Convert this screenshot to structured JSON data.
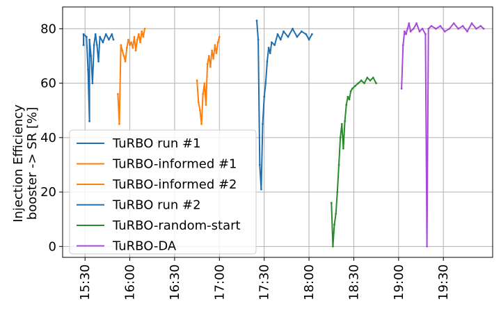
{
  "chart_data": {
    "type": "line",
    "title": "",
    "xlabel": "",
    "ylabel": [
      "Injection Efficiency",
      "booster -> SR [%]"
    ],
    "x_ticks": [
      "15:30",
      "16:00",
      "16:30",
      "17:00",
      "17:30",
      "18:00",
      "18:30",
      "19:00",
      "19:30"
    ],
    "x_tick_values": [
      "15:30",
      "16:00",
      "16:30",
      "17:00",
      "17:30",
      "18:00",
      "18:30",
      "19:00",
      "19:30"
    ],
    "xlim": [
      "15:15",
      "20:03"
    ],
    "y_ticks": [
      "0",
      "20",
      "40",
      "60",
      "80"
    ],
    "y_tick_values": [
      0,
      20,
      40,
      60,
      80
    ],
    "ylim": [
      -4,
      88
    ],
    "grid": true,
    "legend_position": "lower-left",
    "series": [
      {
        "name": "TuRBO run #1",
        "color": "#1f6fb0",
        "points": [
          [
            "15:29",
            74
          ],
          [
            "15:29",
            78
          ],
          [
            "15:31",
            77
          ],
          [
            "15:32",
            65
          ],
          [
            "15:33",
            46
          ],
          [
            "15:33",
            76
          ],
          [
            "15:34",
            70
          ],
          [
            "15:35",
            60
          ],
          [
            "15:36",
            74
          ],
          [
            "15:37",
            78
          ],
          [
            "15:38",
            74
          ],
          [
            "15:39",
            68
          ],
          [
            "15:40",
            77
          ],
          [
            "15:42",
            75
          ],
          [
            "15:44",
            78
          ],
          [
            "15:46",
            76
          ],
          [
            "15:48",
            78
          ],
          [
            "15:49",
            76
          ]
        ]
      },
      {
        "name": "TuRBO-informed #1",
        "color": "#ff7f0e",
        "points": [
          [
            "15:52",
            56
          ],
          [
            "15:53",
            45
          ],
          [
            "15:54",
            74
          ],
          [
            "15:55",
            72
          ],
          [
            "15:56",
            70
          ],
          [
            "15:57",
            68
          ],
          [
            "15:58",
            73
          ],
          [
            "15:59",
            76
          ],
          [
            "16:00",
            74
          ],
          [
            "16:01",
            75
          ],
          [
            "16:02",
            73
          ],
          [
            "16:03",
            77
          ],
          [
            "16:04",
            72
          ],
          [
            "16:05",
            76
          ],
          [
            "16:06",
            78
          ],
          [
            "16:07",
            75
          ],
          [
            "16:08",
            79
          ],
          [
            "16:09",
            77
          ],
          [
            "16:10",
            80
          ]
        ]
      },
      {
        "name": "TuRBO-informed #2",
        "color": "#ff7f0e",
        "points": [
          [
            "16:45",
            61
          ],
          [
            "16:46",
            53
          ],
          [
            "16:47",
            50
          ],
          [
            "16:48",
            45
          ],
          [
            "16:49",
            56
          ],
          [
            "16:50",
            60
          ],
          [
            "16:51",
            52
          ],
          [
            "16:52",
            67
          ],
          [
            "16:53",
            70
          ],
          [
            "16:54",
            66
          ],
          [
            "16:55",
            72
          ],
          [
            "16:56",
            69
          ],
          [
            "16:57",
            74
          ],
          [
            "16:58",
            71
          ],
          [
            "16:59",
            75
          ],
          [
            "17:00",
            77
          ]
        ]
      },
      {
        "name": "TuRBO run #2",
        "color": "#1f6fb0",
        "points": [
          [
            "17:25",
            83
          ],
          [
            "17:26",
            76
          ],
          [
            "17:27",
            30
          ],
          [
            "17:28",
            21
          ],
          [
            "17:29",
            45
          ],
          [
            "17:30",
            55
          ],
          [
            "17:31",
            60
          ],
          [
            "17:32",
            68
          ],
          [
            "17:33",
            73
          ],
          [
            "17:34",
            71
          ],
          [
            "17:35",
            75
          ],
          [
            "17:37",
            74
          ],
          [
            "17:39",
            78
          ],
          [
            "17:41",
            76
          ],
          [
            "17:43",
            79
          ],
          [
            "17:46",
            77
          ],
          [
            "17:49",
            80
          ],
          [
            "17:52",
            77
          ],
          [
            "17:55",
            79
          ],
          [
            "17:58",
            78
          ],
          [
            "18:00",
            76
          ],
          [
            "18:02",
            78
          ]
        ]
      },
      {
        "name": "TuRBO-random-start",
        "color": "#2a8a2a",
        "points": [
          [
            "18:15",
            16
          ],
          [
            "18:16",
            0
          ],
          [
            "18:17",
            8
          ],
          [
            "18:18",
            12
          ],
          [
            "18:19",
            20
          ],
          [
            "18:20",
            30
          ],
          [
            "18:21",
            40
          ],
          [
            "18:22",
            45
          ],
          [
            "18:23",
            36
          ],
          [
            "18:24",
            46
          ],
          [
            "18:25",
            52
          ],
          [
            "18:26",
            55
          ],
          [
            "18:27",
            54
          ],
          [
            "18:28",
            57
          ],
          [
            "18:29",
            58
          ],
          [
            "18:31",
            59
          ],
          [
            "18:33",
            60
          ],
          [
            "18:35",
            61
          ],
          [
            "18:37",
            60
          ],
          [
            "18:39",
            62
          ],
          [
            "18:41",
            61
          ],
          [
            "18:43",
            62
          ],
          [
            "18:45",
            60
          ]
        ]
      },
      {
        "name": "TuRBO-DA",
        "color": "#a54ad9",
        "points": [
          [
            "19:02",
            58
          ],
          [
            "19:03",
            74
          ],
          [
            "19:04",
            79
          ],
          [
            "19:05",
            78
          ],
          [
            "19:06",
            80
          ],
          [
            "19:07",
            82
          ],
          [
            "19:08",
            79
          ],
          [
            "19:10",
            80
          ],
          [
            "19:12",
            82
          ],
          [
            "19:14",
            79
          ],
          [
            "19:16",
            80
          ],
          [
            "19:18",
            78
          ],
          [
            "19:19",
            0
          ],
          [
            "19:20",
            80
          ],
          [
            "19:22",
            81
          ],
          [
            "19:25",
            80
          ],
          [
            "19:28",
            81
          ],
          [
            "19:31",
            79
          ],
          [
            "19:34",
            80
          ],
          [
            "19:37",
            82
          ],
          [
            "19:40",
            80
          ],
          [
            "19:43",
            81
          ],
          [
            "19:46",
            79
          ],
          [
            "19:49",
            82
          ],
          [
            "19:52",
            80
          ],
          [
            "19:55",
            81
          ],
          [
            "19:57",
            80
          ]
        ]
      }
    ]
  }
}
